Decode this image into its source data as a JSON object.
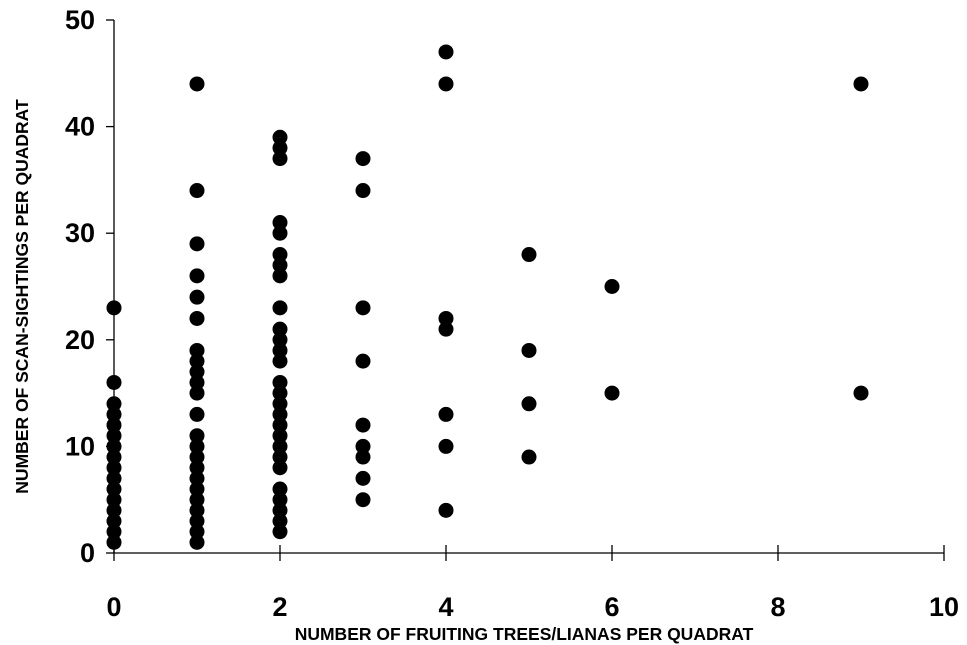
{
  "chart_data": {
    "type": "scatter",
    "title": "",
    "xlabel": "NUMBER OF FRUITING TREES/LIANAS PER QUADRAT",
    "ylabel": "NUMBER OF SCAN-SIGHTINGS PER QUADRAT",
    "xlim": [
      0,
      10
    ],
    "ylim": [
      0,
      50
    ],
    "xticks": [
      "0",
      "2",
      "4",
      "6",
      "8",
      "10"
    ],
    "yticks": [
      "0",
      "10",
      "20",
      "30",
      "40",
      "50"
    ],
    "grid": false,
    "legend": "none",
    "series": [
      {
        "points": [
          [
            0,
            1
          ],
          [
            0,
            2
          ],
          [
            0,
            3
          ],
          [
            0,
            4
          ],
          [
            0,
            5
          ],
          [
            0,
            6
          ],
          [
            0,
            7
          ],
          [
            0,
            8
          ],
          [
            0,
            9
          ],
          [
            0,
            10
          ],
          [
            0,
            11
          ],
          [
            0,
            12
          ],
          [
            0,
            13
          ],
          [
            0,
            14
          ],
          [
            0,
            16
          ],
          [
            0,
            23
          ],
          [
            1,
            1
          ],
          [
            1,
            2
          ],
          [
            1,
            3
          ],
          [
            1,
            4
          ],
          [
            1,
            5
          ],
          [
            1,
            6
          ],
          [
            1,
            7
          ],
          [
            1,
            8
          ],
          [
            1,
            9
          ],
          [
            1,
            10
          ],
          [
            1,
            11
          ],
          [
            1,
            13
          ],
          [
            1,
            15
          ],
          [
            1,
            16
          ],
          [
            1,
            17
          ],
          [
            1,
            18
          ],
          [
            1,
            19
          ],
          [
            1,
            22
          ],
          [
            1,
            24
          ],
          [
            1,
            26
          ],
          [
            1,
            29
          ],
          [
            1,
            34
          ],
          [
            1,
            44
          ],
          [
            2,
            2
          ],
          [
            2,
            3
          ],
          [
            2,
            4
          ],
          [
            2,
            5
          ],
          [
            2,
            6
          ],
          [
            2,
            8
          ],
          [
            2,
            9
          ],
          [
            2,
            10
          ],
          [
            2,
            11
          ],
          [
            2,
            12
          ],
          [
            2,
            13
          ],
          [
            2,
            14
          ],
          [
            2,
            15
          ],
          [
            2,
            16
          ],
          [
            2,
            18
          ],
          [
            2,
            19
          ],
          [
            2,
            20
          ],
          [
            2,
            21
          ],
          [
            2,
            23
          ],
          [
            2,
            26
          ],
          [
            2,
            27
          ],
          [
            2,
            28
          ],
          [
            2,
            30
          ],
          [
            2,
            31
          ],
          [
            2,
            37
          ],
          [
            2,
            38
          ],
          [
            2,
            39
          ],
          [
            3,
            5
          ],
          [
            3,
            7
          ],
          [
            3,
            9
          ],
          [
            3,
            10
          ],
          [
            3,
            12
          ],
          [
            3,
            18
          ],
          [
            3,
            23
          ],
          [
            3,
            34
          ],
          [
            3,
            37
          ],
          [
            4,
            4
          ],
          [
            4,
            10
          ],
          [
            4,
            13
          ],
          [
            4,
            21
          ],
          [
            4,
            22
          ],
          [
            4,
            44
          ],
          [
            4,
            47
          ],
          [
            5,
            9
          ],
          [
            5,
            14
          ],
          [
            5,
            19
          ],
          [
            5,
            28
          ],
          [
            6,
            15
          ],
          [
            6,
            25
          ],
          [
            9,
            15
          ],
          [
            9,
            44
          ]
        ]
      }
    ]
  }
}
